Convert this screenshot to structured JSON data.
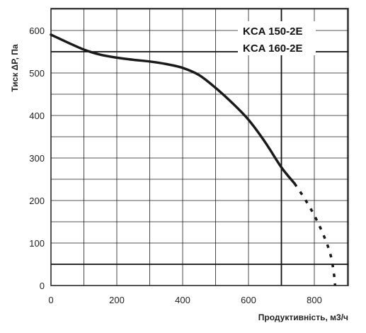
{
  "chart_data": {
    "type": "line",
    "title": "",
    "models": [
      "KCA 150-2E",
      "KCA 160-2E"
    ],
    "xlabel": "Продуктивність, м3/ч",
    "ylabel": "Тиск ΔР, Па",
    "xlim": [
      0,
      900
    ],
    "ylim": [
      0,
      650
    ],
    "x_ticks": [
      0,
      200,
      400,
      600,
      800
    ],
    "y_ticks": [
      0,
      100,
      200,
      300,
      400,
      500,
      600
    ],
    "grid": true,
    "grid_x_step": 100,
    "grid_y_step": 50,
    "highlight_lines": {
      "horizontal": [
        550,
        50
      ],
      "vertical": [
        700
      ]
    },
    "series": [
      {
        "style": "solid",
        "x": [
          0,
          50,
          100,
          150,
          200,
          250,
          300,
          350,
          400,
          450,
          500,
          550,
          600,
          650,
          700,
          740
        ],
        "y": [
          590,
          572,
          555,
          543,
          536,
          531,
          527,
          521,
          512,
          495,
          465,
          430,
          390,
          338,
          278,
          240
        ]
      },
      {
        "style": "dotted",
        "x": [
          740,
          770,
          800,
          830,
          850,
          860,
          863
        ],
        "y": [
          240,
          205,
          165,
          115,
          70,
          25,
          0
        ]
      }
    ],
    "colors": {
      "curve": "#1a1a1a",
      "grid": "#1a1a1a",
      "background": "#ffffff"
    }
  }
}
